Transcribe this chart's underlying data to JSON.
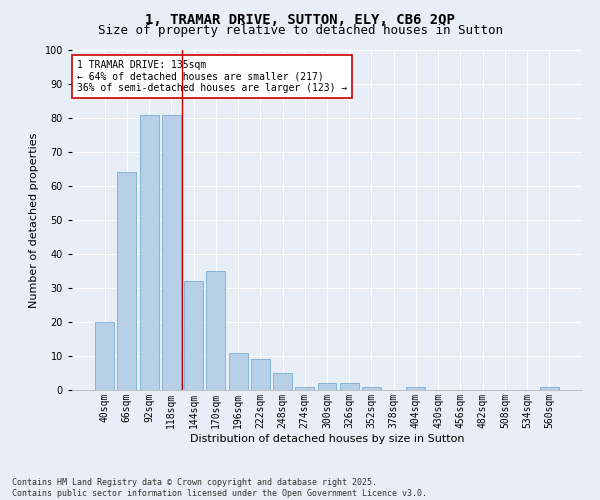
{
  "title": "1, TRAMAR DRIVE, SUTTON, ELY, CB6 2QP",
  "subtitle": "Size of property relative to detached houses in Sutton",
  "xlabel": "Distribution of detached houses by size in Sutton",
  "ylabel": "Number of detached properties",
  "categories": [
    "40sqm",
    "66sqm",
    "92sqm",
    "118sqm",
    "144sqm",
    "170sqm",
    "196sqm",
    "222sqm",
    "248sqm",
    "274sqm",
    "300sqm",
    "326sqm",
    "352sqm",
    "378sqm",
    "404sqm",
    "430sqm",
    "456sqm",
    "482sqm",
    "508sqm",
    "534sqm",
    "560sqm"
  ],
  "values": [
    20,
    64,
    81,
    81,
    32,
    35,
    11,
    9,
    5,
    1,
    2,
    2,
    1,
    0,
    1,
    0,
    0,
    0,
    0,
    0,
    1
  ],
  "bar_color": "#b8cfe8",
  "bar_edge_color": "#7aadd4",
  "vline_x": 3.5,
  "vline_color": "#cc0000",
  "annotation_text": "1 TRAMAR DRIVE: 135sqm\n← 64% of detached houses are smaller (217)\n36% of semi-detached houses are larger (123) →",
  "annotation_box_color": "#ffffff",
  "annotation_box_edge": "#cc0000",
  "bg_color": "#e8eef5",
  "plot_bg_color": "#e8eef5",
  "footer": "Contains HM Land Registry data © Crown copyright and database right 2025.\nContains public sector information licensed under the Open Government Licence v3.0.",
  "ylim": [
    0,
    100
  ],
  "yticks": [
    0,
    10,
    20,
    30,
    40,
    50,
    60,
    70,
    80,
    90,
    100
  ],
  "title_fontsize": 10,
  "subtitle_fontsize": 9,
  "axis_label_fontsize": 8,
  "tick_fontsize": 7,
  "annotation_fontsize": 7,
  "footer_fontsize": 6
}
